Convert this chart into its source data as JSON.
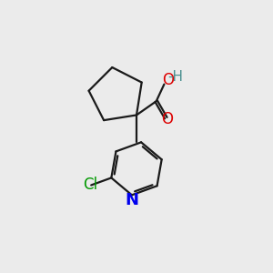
{
  "background_color": "#ebebeb",
  "bond_color": "#1a1a1a",
  "bond_width": 1.6,
  "atom_colors": {
    "O": "#dd0000",
    "N": "#0000ee",
    "Cl": "#009900",
    "H": "#4a9090"
  },
  "font_size_atoms": 11,
  "figsize": [
    3.0,
    3.0
  ],
  "dpi": 100
}
